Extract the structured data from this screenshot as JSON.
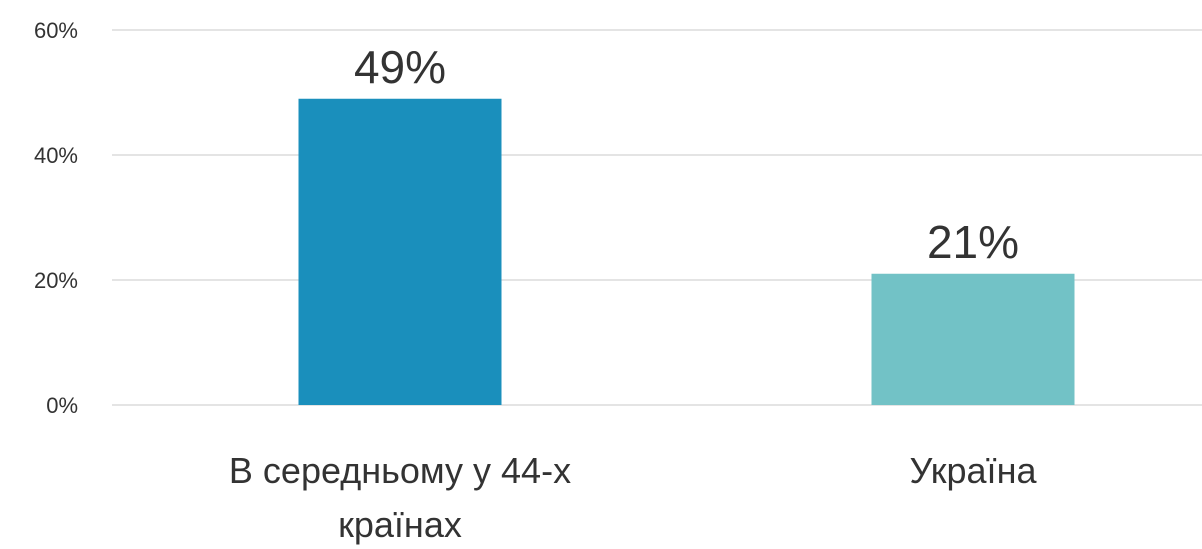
{
  "chart_data": {
    "type": "bar",
    "categories": [
      [
        "В середньому у 44-х",
        "країнах"
      ],
      [
        "Україна"
      ]
    ],
    "values": [
      49,
      21
    ],
    "data_labels": [
      "49%",
      "21%"
    ],
    "colors": [
      "#1a8fbc",
      "#72c2c6"
    ],
    "ylim": [
      0,
      60
    ],
    "yticks": [
      0,
      20,
      40,
      60
    ],
    "ytick_labels": [
      "0%",
      "20%",
      "40%",
      "60%"
    ],
    "grid": true,
    "title": "",
    "xlabel": "",
    "ylabel": ""
  }
}
